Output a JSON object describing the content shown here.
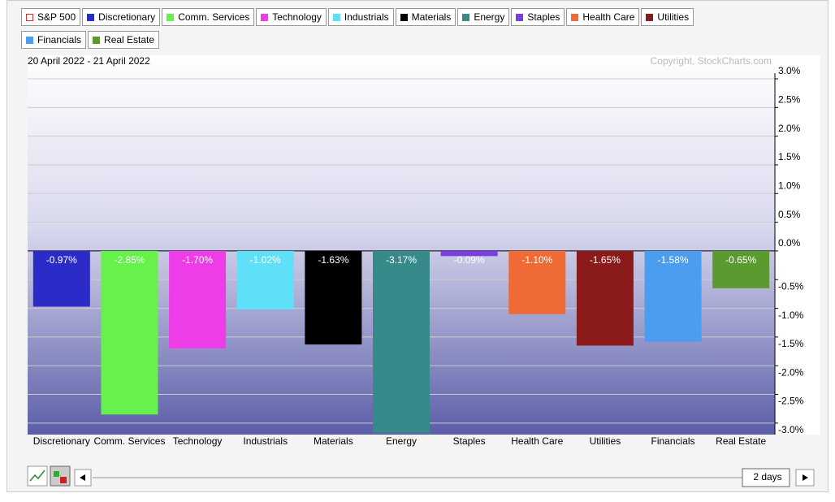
{
  "chart_data": {
    "type": "bar",
    "subtitle": "20 April 2022 - 21 April 2022",
    "annotation": "Copyright, StockCharts.com",
    "legend": [
      {
        "name": "S&P 500",
        "color": "#e0302a"
      },
      {
        "name": "Discretionary",
        "color": "#2b2bc8"
      },
      {
        "name": "Comm. Services",
        "color": "#66f24b"
      },
      {
        "name": "Technology",
        "color": "#ee3ce8"
      },
      {
        "name": "Industrials",
        "color": "#5fe0f8"
      },
      {
        "name": "Materials",
        "color": "#000000"
      },
      {
        "name": "Energy",
        "color": "#378a8a"
      },
      {
        "name": "Staples",
        "color": "#7b3fe0"
      },
      {
        "name": "Health Care",
        "color": "#ef6a34"
      },
      {
        "name": "Utilities",
        "color": "#8b1a1a"
      },
      {
        "name": "Financials",
        "color": "#4c9df0"
      },
      {
        "name": "Real Estate",
        "color": "#5a9a2f"
      }
    ],
    "categories": [
      "Discretionary",
      "Comm. Services",
      "Technology",
      "Industrials",
      "Materials",
      "Energy",
      "Staples",
      "Health Care",
      "Utilities",
      "Financials",
      "Real Estate"
    ],
    "values": [
      -0.97,
      -2.85,
      -1.7,
      -1.02,
      -1.63,
      -3.17,
      -0.09,
      -1.1,
      -1.65,
      -1.58,
      -0.65
    ],
    "value_labels": [
      "-0.97%",
      "-2.85%",
      "-1.70%",
      "-1.02%",
      "-1.63%",
      "-3.17%",
      "-0.09%",
      "-1.10%",
      "-1.65%",
      "-1.58%",
      "-0.65%"
    ],
    "colors": [
      "#2b2bc8",
      "#66f24b",
      "#ee3ce8",
      "#5fe0f8",
      "#000000",
      "#378a8a",
      "#7b3fe0",
      "#ef6a34",
      "#8b1a1a",
      "#4c9df0",
      "#5a9a2f"
    ],
    "ylim": [
      -3.2,
      3.0
    ],
    "yticks": [
      {
        "value": 3.0,
        "label": "3.0%"
      },
      {
        "value": 2.5,
        "label": "2.5%"
      },
      {
        "value": 2.0,
        "label": "2.0%"
      },
      {
        "value": 1.5,
        "label": "1.5%"
      },
      {
        "value": 1.0,
        "label": "1.0%"
      },
      {
        "value": 0.5,
        "label": "0.5%"
      },
      {
        "value": 0.0,
        "label": "0.0%"
      },
      {
        "value": -0.5,
        "label": "-0.5%"
      },
      {
        "value": -1.0,
        "label": "-1.0%"
      },
      {
        "value": -1.5,
        "label": "-1.5%"
      },
      {
        "value": -2.0,
        "label": "-2.0%"
      },
      {
        "value": -2.5,
        "label": "-2.5%"
      },
      {
        "value": -3.0,
        "label": "-3.0%"
      }
    ],
    "grid": true
  },
  "controls": {
    "range": "2 days"
  }
}
